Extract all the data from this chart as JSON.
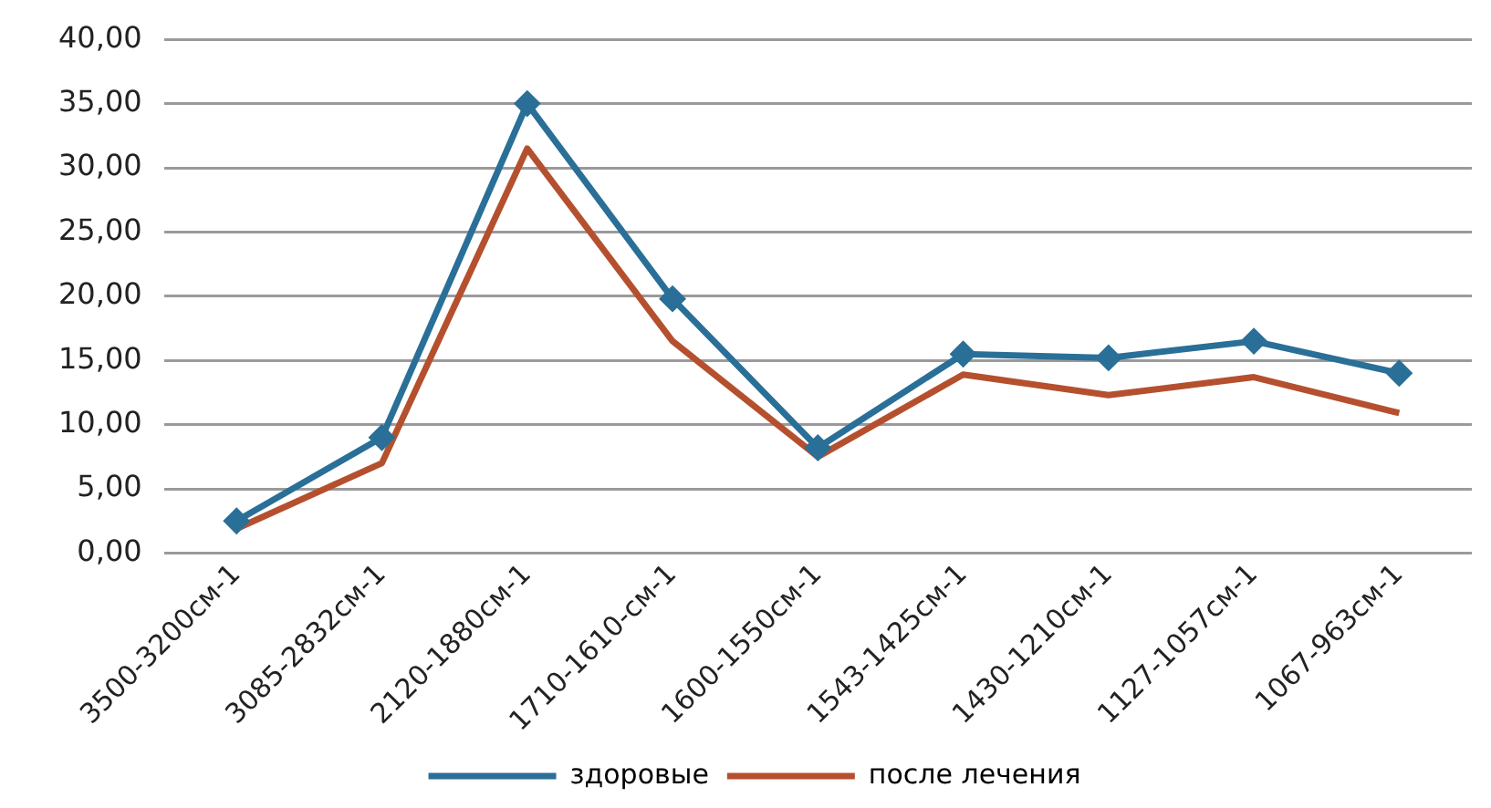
{
  "chart_data": {
    "type": "line",
    "categories": [
      "3500-3200см-1",
      "3085-2832см-1",
      "2120-1880см-1",
      "1710-1610-см-1",
      "1600-1550см-1",
      "1543-1425см-1",
      "1430-1210см-1",
      "1127-1057см-1",
      "1067-963см-1"
    ],
    "series": [
      {
        "name": "здоровые",
        "color": "#2a6f97",
        "marker": "diamond",
        "values": [
          2.5,
          9.0,
          35.0,
          19.8,
          8.2,
          15.5,
          15.2,
          16.5,
          14.0
        ]
      },
      {
        "name": "после лечения",
        "color": "#b5502f",
        "marker": "none",
        "values": [
          1.9,
          7.0,
          31.5,
          16.5,
          7.5,
          13.9,
          12.3,
          13.7,
          10.9
        ]
      }
    ],
    "ylim": [
      0,
      40
    ],
    "yticks": [
      {
        "value": 0,
        "label": "0,00"
      },
      {
        "value": 5,
        "label": "5,00"
      },
      {
        "value": 10,
        "label": "10,00"
      },
      {
        "value": 15,
        "label": "15,00"
      },
      {
        "value": 20,
        "label": "20,00"
      },
      {
        "value": 25,
        "label": "25,00"
      },
      {
        "value": 30,
        "label": "30,00"
      },
      {
        "value": 35,
        "label": "35,00"
      },
      {
        "value": 40,
        "label": "40,00"
      }
    ],
    "grid": "y",
    "legend": "bottom",
    "line_style": "solid"
  }
}
